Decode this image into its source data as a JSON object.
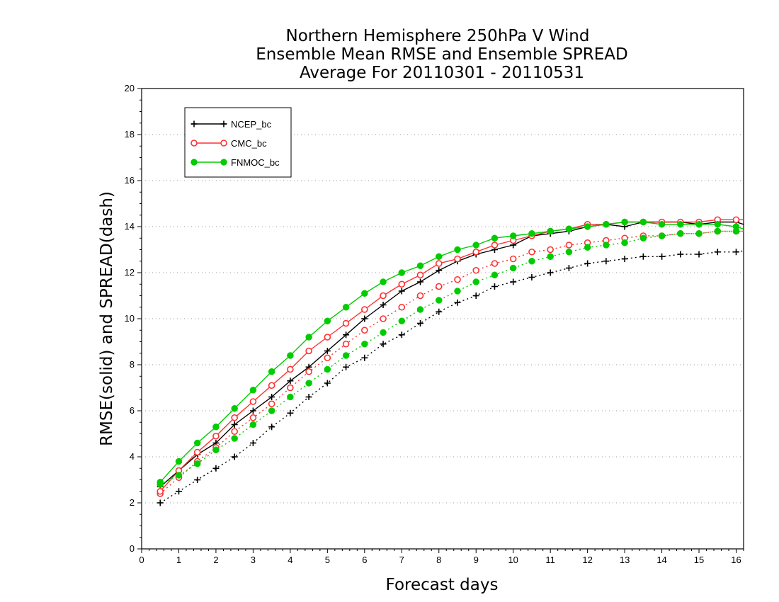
{
  "chart_data": {
    "type": "line",
    "title": "Northern Hemisphere 250hPa V Wind",
    "subtitle": "Ensemble Mean RMSE and Ensemble SPREAD",
    "period": "Average For 20110301 - 20110531",
    "xlabel": "Forecast days",
    "ylabel": "RMSE(solid) and SPREAD(dash)",
    "xlim": [
      0,
      16.2
    ],
    "ylim": [
      0,
      20
    ],
    "xticks": [
      0,
      1,
      2,
      3,
      4,
      5,
      6,
      7,
      8,
      9,
      10,
      11,
      12,
      13,
      14,
      15,
      16
    ],
    "yticks": [
      0,
      2,
      4,
      6,
      8,
      10,
      12,
      14,
      16,
      18,
      20
    ],
    "grid": "horizontal dotted",
    "legend_position": "top-left",
    "x": [
      0.5,
      1,
      1.5,
      2,
      2.5,
      3,
      3.5,
      4,
      4.5,
      5,
      5.5,
      6,
      6.5,
      7,
      7.5,
      8,
      8.5,
      9,
      9.5,
      10,
      10.5,
      11,
      11.5,
      12,
      12.5,
      13,
      13.5,
      14,
      14.5,
      15,
      15.5,
      16,
      16.2
    ],
    "series": [
      {
        "name": "NCEP_bc",
        "color": "#000000",
        "marker": "plus",
        "rmse": [
          2.7,
          3.4,
          4.1,
          4.6,
          5.4,
          6.0,
          6.6,
          7.3,
          7.9,
          8.6,
          9.3,
          10.0,
          10.6,
          11.2,
          11.6,
          12.1,
          12.5,
          12.8,
          13.0,
          13.2,
          13.6,
          13.7,
          13.8,
          14.0,
          14.1,
          14.0,
          14.2,
          14.2,
          14.2,
          14.1,
          14.2,
          14.2,
          14.1
        ],
        "spread": [
          2.0,
          2.5,
          3.0,
          3.5,
          4.0,
          4.6,
          5.3,
          5.9,
          6.6,
          7.2,
          7.9,
          8.3,
          8.9,
          9.3,
          9.8,
          10.3,
          10.7,
          11.0,
          11.4,
          11.6,
          11.8,
          12.0,
          12.2,
          12.4,
          12.5,
          12.6,
          12.7,
          12.7,
          12.8,
          12.8,
          12.9,
          12.9,
          12.95
        ]
      },
      {
        "name": "CMC_bc",
        "color": "#ff3030",
        "marker": "open-circle",
        "rmse": [
          2.5,
          3.4,
          4.2,
          4.9,
          5.7,
          6.4,
          7.1,
          7.8,
          8.6,
          9.2,
          9.8,
          10.4,
          11.0,
          11.5,
          11.9,
          12.4,
          12.6,
          12.9,
          13.2,
          13.4,
          13.6,
          13.8,
          13.9,
          14.1,
          14.1,
          14.2,
          14.2,
          14.2,
          14.2,
          14.2,
          14.3,
          14.3,
          14.3
        ],
        "spread": [
          2.4,
          3.1,
          3.8,
          4.4,
          5.1,
          5.7,
          6.3,
          7.0,
          7.7,
          8.3,
          8.9,
          9.5,
          10.0,
          10.5,
          11.0,
          11.4,
          11.7,
          12.1,
          12.4,
          12.6,
          12.9,
          13.0,
          13.2,
          13.3,
          13.4,
          13.5,
          13.6,
          13.6,
          13.7,
          13.7,
          13.8,
          13.8,
          13.8
        ]
      },
      {
        "name": "FNMOC_bc",
        "color": "#00cc00",
        "marker": "filled-circle",
        "rmse": [
          2.9,
          3.8,
          4.6,
          5.3,
          6.1,
          6.9,
          7.7,
          8.4,
          9.2,
          9.9,
          10.5,
          11.1,
          11.6,
          12.0,
          12.3,
          12.7,
          13.0,
          13.2,
          13.5,
          13.6,
          13.7,
          13.8,
          13.9,
          14.0,
          14.1,
          14.2,
          14.2,
          14.1,
          14.1,
          14.1,
          14.1,
          14.0,
          13.9
        ],
        "spread": [
          2.8,
          3.2,
          3.7,
          4.3,
          4.8,
          5.4,
          6.0,
          6.6,
          7.2,
          7.8,
          8.4,
          8.9,
          9.4,
          9.9,
          10.4,
          10.8,
          11.2,
          11.6,
          11.9,
          12.2,
          12.5,
          12.7,
          12.9,
          13.1,
          13.2,
          13.3,
          13.5,
          13.6,
          13.7,
          13.7,
          13.8,
          13.8,
          13.8
        ]
      }
    ]
  }
}
